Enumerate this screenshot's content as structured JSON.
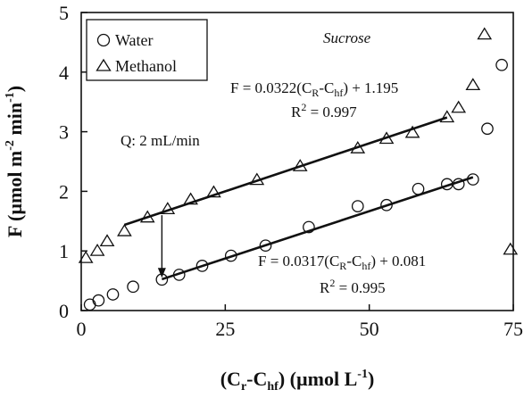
{
  "chart_data": {
    "type": "scatter",
    "title": "",
    "subtitle": "Sucrose",
    "xlabel": "(Cr-Chf) (µmol L-1)",
    "xlabel_parts": {
      "pre": "(C",
      "s1": "r",
      "mid": "-C",
      "s2": "hf",
      "post": ") (µmol L",
      "sup": "-1",
      "end": ")"
    },
    "ylabel": "F (µmol m-2 min-1)",
    "ylabel_parts": {
      "pre": "F (µmol m",
      "sup1": "-2",
      "mid": " min",
      "sup2": "-1",
      "end": ")"
    },
    "xlim": [
      0,
      75
    ],
    "ylim": [
      0,
      5
    ],
    "xticks": [
      "0",
      "25",
      "50",
      "75"
    ],
    "yticks": [
      "0",
      "1",
      "2",
      "3",
      "4",
      "5"
    ],
    "grid": false,
    "legend_position": "top-left",
    "series": [
      {
        "name": "Water",
        "marker": "circle",
        "points": [
          [
            1.5,
            0.1
          ],
          [
            3,
            0.17
          ],
          [
            5.5,
            0.27
          ],
          [
            9,
            0.4
          ],
          [
            14,
            0.52
          ],
          [
            17,
            0.6
          ],
          [
            21,
            0.75
          ],
          [
            26,
            0.92
          ],
          [
            32,
            1.09
          ],
          [
            39.5,
            1.4
          ],
          [
            48,
            1.75
          ],
          [
            53,
            1.77
          ],
          [
            58.5,
            2.04
          ],
          [
            63.5,
            2.12
          ],
          [
            65.5,
            2.12
          ],
          [
            68,
            2.2
          ],
          [
            70.5,
            3.05
          ],
          [
            73,
            4.12
          ]
        ]
      },
      {
        "name": "Methanol",
        "marker": "triangle",
        "points": [
          [
            0.8,
            0.88
          ],
          [
            2.8,
            1.0
          ],
          [
            4.5,
            1.16
          ],
          [
            7.5,
            1.33
          ],
          [
            11.5,
            1.56
          ],
          [
            15,
            1.7
          ],
          [
            19,
            1.86
          ],
          [
            23,
            1.98
          ],
          [
            30.5,
            2.19
          ],
          [
            38,
            2.42
          ],
          [
            48,
            2.72
          ],
          [
            53,
            2.88
          ],
          [
            57.5,
            2.98
          ],
          [
            63.5,
            3.24
          ],
          [
            65.5,
            3.4
          ],
          [
            68,
            3.78
          ],
          [
            70,
            4.63
          ],
          [
            74.5,
            1.02
          ]
        ]
      }
    ],
    "fit_lines": [
      {
        "series": "Methanol",
        "slope": 0.0322,
        "intercept": 1.195,
        "x_range": [
          7.5,
          63.5
        ],
        "equation": {
          "pre": "F = 0.0322(C",
          "s1": "R",
          "mid": "-C",
          "s2": "hf",
          "post": ") + 1.195"
        },
        "r2": {
          "pre": "R",
          "sup": "2",
          "post": " = 0.997"
        }
      },
      {
        "series": "Water",
        "slope": 0.0317,
        "intercept": 0.081,
        "x_range": [
          14,
          68
        ],
        "equation": {
          "pre": "F = 0.0317(C",
          "s1": "R",
          "mid": "-C",
          "s2": "hf",
          "post": ") + 0.081"
        },
        "r2": {
          "pre": "R",
          "sup": "2",
          "post": " = 0.995"
        }
      }
    ],
    "annotations": {
      "flow_rate": "Q: 2 mL/min",
      "arrow": {
        "x": 14,
        "from_y": 1.6,
        "to_y": 0.55
      }
    }
  }
}
